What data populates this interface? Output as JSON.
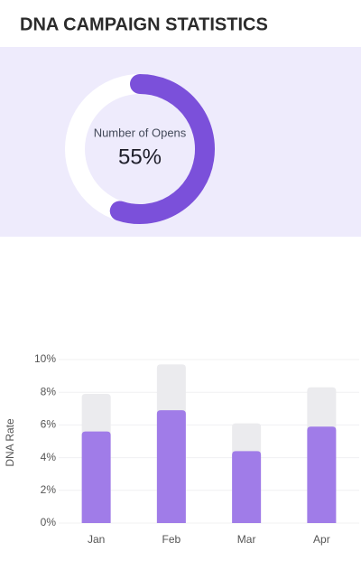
{
  "header": {
    "title": "DNA CAMPAIGN STATISTICS"
  },
  "chart_data": [
    {
      "type": "donut",
      "title": "Number of Opens",
      "values": [
        55
      ],
      "value_labels": [
        "55%"
      ],
      "color": "#7b50da",
      "track_color": "#ffffff",
      "background": "#eeebfc"
    },
    {
      "type": "bar",
      "ylabel": "DNA Rate",
      "categories": [
        "Jan",
        "Feb",
        "Mar",
        "Apr"
      ],
      "series": [
        {
          "color": "#ebebee",
          "values": [
            7.9,
            9.7,
            6.1,
            8.3
          ]
        },
        {
          "color": "#a07ce8",
          "values": [
            5.6,
            6.9,
            4.4,
            5.9
          ]
        }
      ],
      "ylim": [
        0,
        10
      ],
      "yticks": [
        {
          "value": 0,
          "label": "0%"
        },
        {
          "value": 2,
          "label": "2%"
        },
        {
          "value": 4,
          "label": "4%"
        },
        {
          "value": 6,
          "label": "6%"
        },
        {
          "value": 8,
          "label": "8%"
        },
        {
          "value": 10,
          "label": "10%"
        }
      ],
      "grid": true
    }
  ]
}
